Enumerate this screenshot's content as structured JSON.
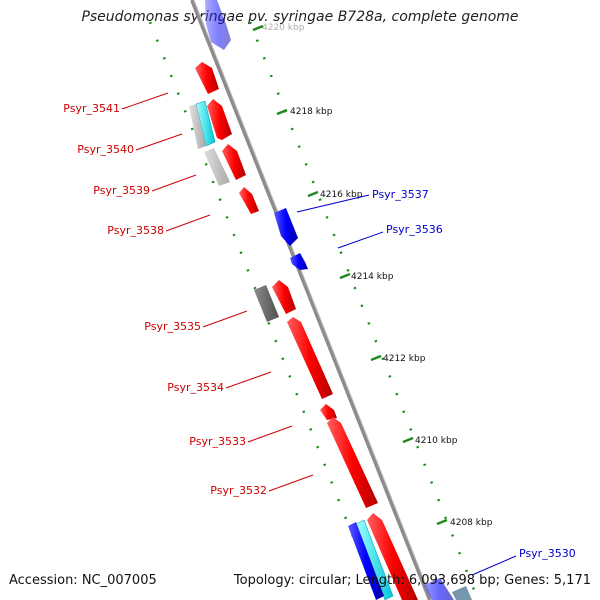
{
  "title": "Pseudomonas syringae pv. syringae B728a, complete genome",
  "accession_text": "Accession: NC_007005",
  "summary_text": "Topology: circular; Length: 6,093,698 bp; Genes: 5,171",
  "ticks": [
    "4220 kbp",
    "4218 kbp",
    "4216 kbp",
    "4214 kbp",
    "4212 kbp",
    "4210 kbp",
    "4208 kbp"
  ],
  "left_labels": [
    "Psyr_3541",
    "Psyr_3540",
    "Psyr_3539",
    "Psyr_3538",
    "Psyr_3535",
    "Psyr_3534",
    "Psyr_3533",
    "Psyr_3532"
  ],
  "right_labels": [
    "Psyr_3537",
    "Psyr_3536",
    "Psyr_3530"
  ],
  "colors": {
    "forward_gene": "#ff0000",
    "reverse_gene": "#0000ff",
    "cyan_feature": "#00e5ee",
    "gray_feature": "#bdbdbd",
    "dark_feature": "#6b6b6b",
    "backbone": "#8c8c8c",
    "tick_dots": "#1e8a1e",
    "left_label": "#cc0000",
    "right_label": "#0000cc"
  }
}
